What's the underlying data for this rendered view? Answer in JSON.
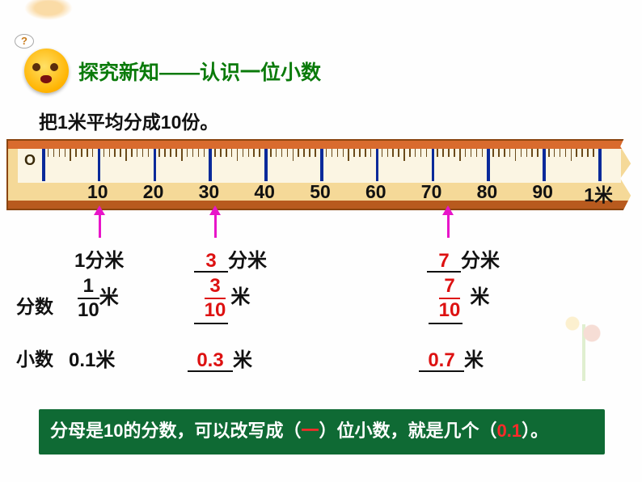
{
  "header": {
    "speech": "?",
    "title": "探究新知——认识一位小数"
  },
  "subtitle": "把1米平均分成10份。",
  "ruler": {
    "zero_label": "O",
    "major_labels": [
      "10",
      "20",
      "30",
      "40",
      "50",
      "60",
      "70",
      "80",
      "90"
    ],
    "end_label": "1米",
    "bar_color": "#f5d998",
    "border_color": "#8a4510",
    "tick_blue": "#0a2a9a",
    "arrow_color": "#e815c9",
    "arrow_positions_pct": [
      12.5,
      27.5,
      57.5
    ]
  },
  "dm_row": {
    "col1": "1分米",
    "col2_val": "3",
    "col2_unit": "分米",
    "col3_val": "7",
    "col3_unit": "分米"
  },
  "frac_row": {
    "head": "分数",
    "col1_num": "1",
    "col1_den": "10",
    "col1_unit": "米",
    "col2_num": "3",
    "col2_den": "10",
    "col2_unit": "米",
    "col3_num": "7",
    "col3_den": "10",
    "col3_unit": "米"
  },
  "dec_row": {
    "head": "小数",
    "col1": "0.1米",
    "col2_val": "0.3",
    "col2_unit": "米",
    "col3_val": "0.7",
    "col3_unit": "米"
  },
  "conclusion": {
    "pre": "分母是10的分数，可以改写成（",
    "ans1": "一",
    "mid": "）位小数，就是几个（",
    "ans2": "0.1",
    "post": "）。"
  },
  "colors": {
    "title": "#0a7a0a",
    "red": "#d11",
    "conclusion_bg": "#0f6a34"
  }
}
